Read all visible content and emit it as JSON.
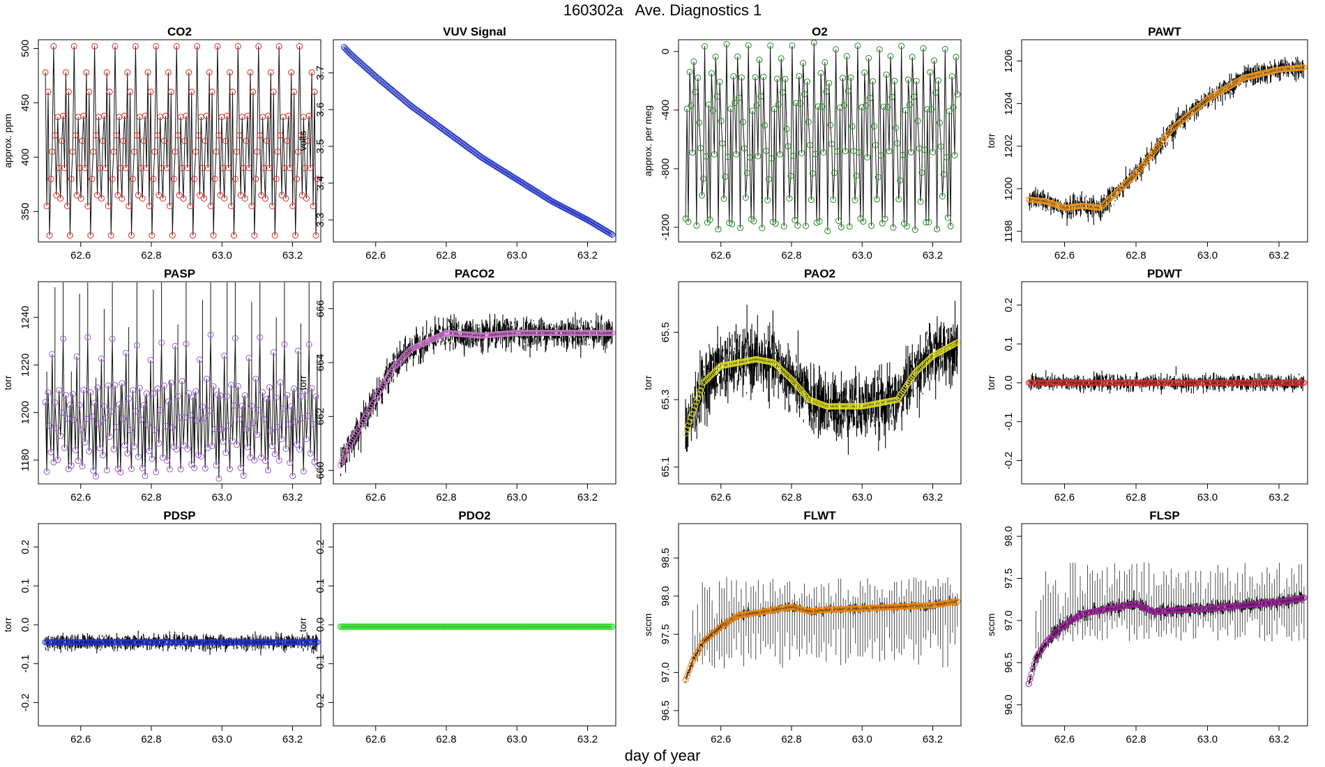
{
  "figure": {
    "title": "160302a   Ave. Diagnostics 1",
    "xlabel": "day of year"
  },
  "chart_data": [
    {
      "type": "line",
      "title": "CO2",
      "ylabel": "approx. ppm",
      "xlim": [
        62.48,
        63.28
      ],
      "ylim": [
        322,
        508
      ],
      "xticks": [
        62.6,
        62.8,
        63.0,
        63.2
      ],
      "xtick_labels": [
        "62.6",
        "62.8",
        "63.0",
        "63.2"
      ],
      "yticks": [
        350,
        400,
        450,
        500
      ],
      "ytick_labels": [
        "350",
        "400",
        "450",
        "500"
      ],
      "marker_color": "#dd2222",
      "line_color": "#000000",
      "pattern": "co2_cycle",
      "noise": 0,
      "x_start": 62.5,
      "x_end": 63.27,
      "n_points": 200
    },
    {
      "type": "line",
      "title": "VUV Signal",
      "ylabel": "volts",
      "xlim": [
        62.48,
        63.28
      ],
      "ylim": [
        3.24,
        3.79
      ],
      "xticks": [
        62.6,
        62.8,
        63.0,
        63.2
      ],
      "xtick_labels": [
        "62.6",
        "62.8",
        "63.0",
        "63.2"
      ],
      "yticks": [
        3.3,
        3.4,
        3.5,
        3.6,
        3.7
      ],
      "ytick_labels": [
        "3.3",
        "3.4",
        "3.5",
        "3.6",
        "3.7"
      ],
      "marker_color": "#2233cc",
      "line_color": "#000000",
      "pattern": "curve",
      "noise": 0,
      "x_start": 62.51,
      "x_end": 63.27,
      "n_points": 200,
      "curve_x": [
        62.51,
        62.53,
        62.6,
        62.7,
        62.8,
        62.9,
        63.0,
        63.1,
        63.2,
        63.27
      ],
      "curve_y": [
        3.77,
        3.75,
        3.69,
        3.61,
        3.54,
        3.47,
        3.41,
        3.35,
        3.3,
        3.26
      ]
    },
    {
      "type": "line",
      "title": "O2",
      "ylabel": "approx. per meg",
      "xlim": [
        62.48,
        63.28
      ],
      "ylim": [
        -1300,
        80
      ],
      "xticks": [
        62.6,
        62.8,
        63.0,
        63.2
      ],
      "xtick_labels": [
        "62.6",
        "62.8",
        "63.0",
        "63.2"
      ],
      "yticks": [
        -1200,
        -800,
        -400,
        0
      ],
      "ytick_labels": [
        "-1200",
        "-800",
        "-400",
        "0"
      ],
      "marker_color": "#228822",
      "line_color": "#000000",
      "pattern": "o2_cycle",
      "noise": 0,
      "x_start": 62.5,
      "x_end": 63.27,
      "n_points": 200
    },
    {
      "type": "line",
      "title": "PAWT",
      "ylabel": "torr",
      "xlim": [
        62.48,
        63.28
      ],
      "ylim": [
        1197.5,
        1207
      ],
      "xticks": [
        62.6,
        62.8,
        63.0,
        63.2
      ],
      "xtick_labels": [
        "62.6",
        "62.8",
        "63.0",
        "63.2"
      ],
      "yticks": [
        1198,
        1200,
        1202,
        1204,
        1206
      ],
      "ytick_labels": [
        "1198",
        "1200",
        "1202",
        "1204",
        "1206"
      ],
      "marker_color": "#ee9922",
      "line_color": "#000000",
      "pattern": "curve",
      "noise": 0.45,
      "x_start": 62.5,
      "x_end": 63.27,
      "n_points": 200,
      "curve_x": [
        62.5,
        62.55,
        62.6,
        62.65,
        62.7,
        62.75,
        62.8,
        62.9,
        63.0,
        63.1,
        63.2,
        63.27
      ],
      "curve_y": [
        1199.5,
        1199.4,
        1199.1,
        1199.2,
        1199.1,
        1199.9,
        1200.7,
        1202.8,
        1204.2,
        1205.2,
        1205.6,
        1205.7
      ]
    },
    {
      "type": "line",
      "title": "PASP",
      "ylabel": "torr",
      "xlim": [
        62.48,
        63.28
      ],
      "ylim": [
        1170,
        1255
      ],
      "xticks": [
        62.6,
        62.8,
        63.0,
        63.2
      ],
      "xtick_labels": [
        "62.6",
        "62.8",
        "63.0",
        "63.2"
      ],
      "yticks": [
        1180,
        1200,
        1220,
        1240
      ],
      "ytick_labels": [
        "1180",
        "1200",
        "1220",
        "1240"
      ],
      "marker_color": "#9955cc",
      "line_color": "#000000",
      "pattern": "pasp_cycle",
      "noise": 0,
      "x_start": 62.5,
      "x_end": 63.27,
      "n_points": 200
    },
    {
      "type": "line",
      "title": "PACO2",
      "ylabel": "torr",
      "xlim": [
        62.48,
        63.28
      ],
      "ylim": [
        659.5,
        667
      ],
      "xticks": [
        62.6,
        62.8,
        63.0,
        63.2
      ],
      "xtick_labels": [
        "62.6",
        "62.8",
        "63.0",
        "63.2"
      ],
      "yticks": [
        660,
        662,
        664,
        666
      ],
      "ytick_labels": [
        "660",
        "662",
        "664",
        "666"
      ],
      "marker_color": "#cc77cc",
      "line_color": "#000000",
      "pattern": "curve",
      "noise": 0.5,
      "x_start": 62.5,
      "x_end": 63.27,
      "n_points": 200,
      "curve_x": [
        62.5,
        62.52,
        62.55,
        62.6,
        62.65,
        62.7,
        62.75,
        62.8,
        62.9,
        63.0,
        63.27
      ],
      "curve_y": [
        660.2,
        660.8,
        661.5,
        662.7,
        663.8,
        664.5,
        664.8,
        665.1,
        665.0,
        665.1,
        665.1
      ]
    },
    {
      "type": "line",
      "title": "PAO2",
      "ylabel": "torr",
      "xlim": [
        62.48,
        63.28
      ],
      "ylim": [
        65.05,
        65.65
      ],
      "xticks": [
        62.6,
        62.8,
        63.0,
        63.2
      ],
      "xtick_labels": [
        "62.6",
        "62.8",
        "63.0",
        "63.2"
      ],
      "yticks": [
        65.1,
        65.3,
        65.5
      ],
      "ytick_labels": [
        "65.1",
        "65.3",
        "65.5"
      ],
      "marker_color": "#dddd22",
      "line_color": "#000000",
      "pattern": "curve",
      "noise": 0.085,
      "x_start": 62.5,
      "x_end": 63.27,
      "n_points": 200,
      "curve_x": [
        62.5,
        62.55,
        62.6,
        62.7,
        62.75,
        62.8,
        62.85,
        62.9,
        63.0,
        63.05,
        63.1,
        63.15,
        63.2,
        63.27
      ],
      "curve_y": [
        65.2,
        65.35,
        65.4,
        65.42,
        65.41,
        65.36,
        65.3,
        65.28,
        65.28,
        65.29,
        65.3,
        65.38,
        65.43,
        65.47
      ]
    },
    {
      "type": "line",
      "title": "PDWT",
      "ylabel": "torr",
      "xlim": [
        62.48,
        63.28
      ],
      "ylim": [
        -0.26,
        0.26
      ],
      "xticks": [
        62.6,
        62.8,
        63.0,
        63.2
      ],
      "xtick_labels": [
        "62.6",
        "62.8",
        "63.0",
        "63.2"
      ],
      "yticks": [
        -0.2,
        -0.1,
        0.0,
        0.1,
        0.2
      ],
      "ytick_labels": [
        "-0.2",
        "-0.1",
        "0.0",
        "0.1",
        "0.2"
      ],
      "marker_color": "#cc3333",
      "line_color": "#000000",
      "pattern": "flat",
      "noise": 0.018,
      "x_start": 62.5,
      "x_end": 63.27,
      "n_points": 200,
      "flat_value": 0.0
    },
    {
      "type": "line",
      "title": "PDSP",
      "ylabel": "torr",
      "xlim": [
        62.48,
        63.28
      ],
      "ylim": [
        -0.26,
        0.26
      ],
      "xticks": [
        62.6,
        62.8,
        63.0,
        63.2
      ],
      "xtick_labels": [
        "62.6",
        "62.8",
        "63.0",
        "63.2"
      ],
      "yticks": [
        -0.2,
        -0.1,
        0.0,
        0.1,
        0.2
      ],
      "ytick_labels": [
        "-0.2",
        "-0.1",
        "0.0",
        "0.1",
        "0.2"
      ],
      "marker_color": "#2233cc",
      "line_color": "#000000",
      "pattern": "flat",
      "noise": 0.018,
      "x_start": 62.5,
      "x_end": 63.27,
      "n_points": 200,
      "flat_value": -0.045
    },
    {
      "type": "line",
      "title": "PDO2",
      "ylabel": "torr",
      "xlim": [
        62.48,
        63.28
      ],
      "ylim": [
        -0.26,
        0.26
      ],
      "xticks": [
        62.6,
        62.8,
        63.0,
        63.2
      ],
      "xtick_labels": [
        "62.6",
        "62.8",
        "63.0",
        "63.2"
      ],
      "yticks": [
        -0.2,
        -0.1,
        0.0,
        0.1,
        0.2
      ],
      "ytick_labels": [
        "-0.2",
        "-0.1",
        "0.0",
        "0.1",
        "0.2"
      ],
      "marker_color": "#22dd22",
      "line_color": "#000000",
      "pattern": "flat",
      "noise": 0,
      "x_start": 62.5,
      "x_end": 63.27,
      "n_points": 200,
      "flat_value": -0.005
    },
    {
      "type": "line",
      "title": "FLWT",
      "ylabel": "sccm",
      "xlim": [
        62.48,
        63.28
      ],
      "ylim": [
        96.3,
        98.95
      ],
      "xticks": [
        62.6,
        62.8,
        63.0,
        63.2
      ],
      "xtick_labels": [
        "62.6",
        "62.8",
        "63.0",
        "63.2"
      ],
      "yticks": [
        96.5,
        97.0,
        97.5,
        98.0,
        98.5
      ],
      "ytick_labels": [
        "96.5",
        "97.0",
        "97.5",
        "98.0",
        "98.5"
      ],
      "marker_color": "#ee8811",
      "line_color": "#000000",
      "pattern": "curve",
      "noise": 0.05,
      "x_start": 62.5,
      "x_end": 63.27,
      "n_points": 200,
      "spike_low": 97.05,
      "spike_high": 98.25,
      "curve_x": [
        62.5,
        62.52,
        62.55,
        62.6,
        62.65,
        62.7,
        62.8,
        62.85,
        62.9,
        63.0,
        63.1,
        63.2,
        63.27
      ],
      "curve_y": [
        96.9,
        97.15,
        97.4,
        97.6,
        97.75,
        97.78,
        97.86,
        97.8,
        97.82,
        97.84,
        97.86,
        97.88,
        97.93
      ]
    },
    {
      "type": "line",
      "title": "FLSP",
      "ylabel": "sccm",
      "xlim": [
        62.48,
        63.28
      ],
      "ylim": [
        95.75,
        98.15
      ],
      "xticks": [
        62.6,
        62.8,
        63.0,
        63.2
      ],
      "xtick_labels": [
        "62.6",
        "62.8",
        "63.0",
        "63.2"
      ],
      "yticks": [
        96.0,
        96.5,
        97.0,
        97.5,
        98.0
      ],
      "ytick_labels": [
        "96.0",
        "96.5",
        "97.0",
        "97.5",
        "98.0"
      ],
      "marker_color": "#992299",
      "line_color": "#000000",
      "pattern": "curve",
      "noise": 0.07,
      "x_start": 62.5,
      "x_end": 63.27,
      "n_points": 200,
      "spike_low": 96.75,
      "spike_high": 97.7,
      "curve_x": [
        62.5,
        62.52,
        62.55,
        62.6,
        62.65,
        62.7,
        62.8,
        62.85,
        62.9,
        63.0,
        63.1,
        63.2,
        63.27
      ],
      "curve_y": [
        96.25,
        96.55,
        96.75,
        96.95,
        97.08,
        97.12,
        97.2,
        97.1,
        97.12,
        97.14,
        97.18,
        97.22,
        97.27
      ]
    }
  ]
}
